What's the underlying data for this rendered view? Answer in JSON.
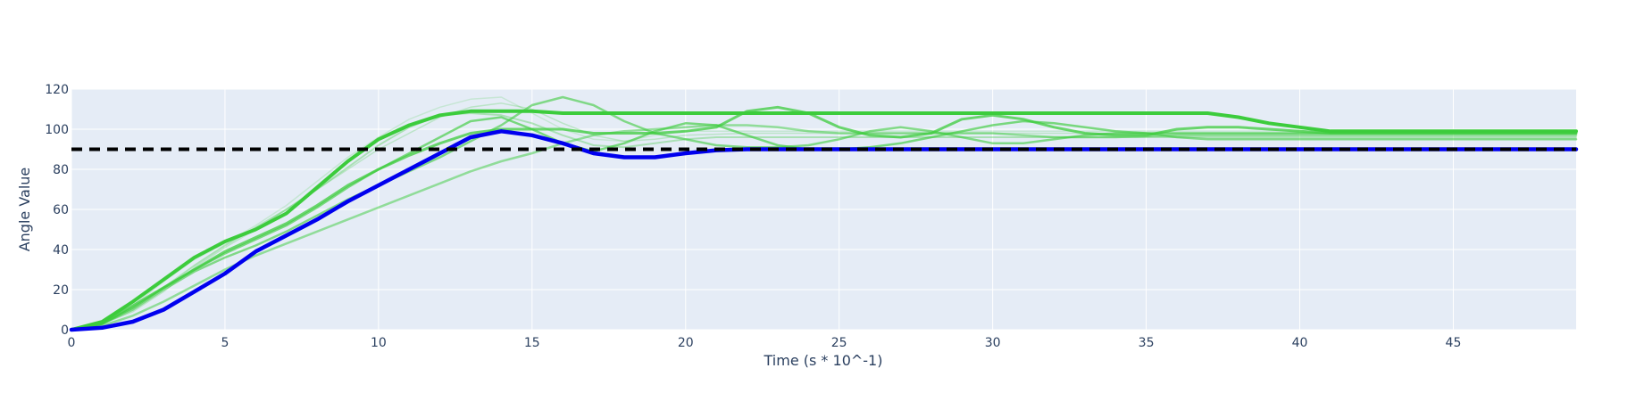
{
  "chart_data": {
    "type": "line",
    "title": "",
    "xlabel": "Time (s * 10^-1)",
    "ylabel": "Angle Value",
    "xlim": [
      0,
      49
    ],
    "ylim": [
      0,
      120
    ],
    "x_ticks": [
      0,
      5,
      10,
      15,
      20,
      25,
      30,
      35,
      40,
      45
    ],
    "y_ticks": [
      0,
      20,
      40,
      60,
      80,
      100,
      120
    ],
    "grid": true,
    "legend": "none",
    "colors": {
      "plot_bg": "#e5ecf6",
      "grid": "#ffffff",
      "text": "#2a3f5f",
      "green": "#3ccc3c",
      "blue": "#0000ee",
      "target": "#000000"
    },
    "target": {
      "y": 90,
      "style": "dashed"
    },
    "series": [
      {
        "role": "faint",
        "opacity": 0.18,
        "width": 1.5,
        "points": [
          [
            0,
            0
          ],
          [
            1,
            4
          ],
          [
            2,
            12
          ],
          [
            3,
            24
          ],
          [
            4,
            35
          ],
          [
            5,
            43
          ],
          [
            6,
            52
          ],
          [
            7,
            62
          ],
          [
            8,
            74
          ],
          [
            9,
            86
          ],
          [
            10,
            96
          ],
          [
            11,
            105
          ],
          [
            12,
            111
          ],
          [
            13,
            115
          ],
          [
            14,
            116
          ],
          [
            15,
            108
          ],
          [
            16,
            100
          ],
          [
            17,
            95
          ],
          [
            18,
            94
          ],
          [
            19,
            97
          ],
          [
            20,
            99
          ],
          [
            22,
            99
          ],
          [
            25,
            99
          ],
          [
            30,
            99
          ],
          [
            35,
            99
          ],
          [
            40,
            99
          ],
          [
            45,
            99
          ],
          [
            49,
            99
          ]
        ]
      },
      {
        "role": "faint",
        "opacity": 0.25,
        "width": 1.5,
        "points": [
          [
            0,
            0
          ],
          [
            1,
            3
          ],
          [
            2,
            9
          ],
          [
            3,
            19
          ],
          [
            4,
            31
          ],
          [
            5,
            41
          ],
          [
            6,
            50
          ],
          [
            7,
            60
          ],
          [
            8,
            70
          ],
          [
            9,
            80
          ],
          [
            10,
            90
          ],
          [
            11,
            98
          ],
          [
            12,
            106
          ],
          [
            13,
            111
          ],
          [
            14,
            113
          ],
          [
            15,
            110
          ],
          [
            16,
            103
          ],
          [
            17,
            97
          ],
          [
            18,
            94
          ],
          [
            19,
            95
          ],
          [
            20,
            97
          ],
          [
            22,
            98
          ],
          [
            25,
            98
          ],
          [
            30,
            98
          ],
          [
            35,
            98
          ],
          [
            40,
            98
          ],
          [
            45,
            98
          ],
          [
            49,
            98
          ]
        ]
      },
      {
        "role": "faint",
        "opacity": 0.35,
        "width": 2,
        "points": [
          [
            0,
            0
          ],
          [
            1,
            4
          ],
          [
            2,
            11
          ],
          [
            3,
            21
          ],
          [
            4,
            32
          ],
          [
            5,
            42
          ],
          [
            6,
            51
          ],
          [
            7,
            60
          ],
          [
            8,
            70
          ],
          [
            9,
            81
          ],
          [
            10,
            92
          ],
          [
            11,
            101
          ],
          [
            12,
            107
          ],
          [
            13,
            108
          ],
          [
            14,
            107
          ],
          [
            15,
            103
          ],
          [
            16,
            97
          ],
          [
            17,
            92
          ],
          [
            18,
            91
          ],
          [
            19,
            93
          ],
          [
            20,
            95
          ],
          [
            21,
            96
          ],
          [
            22,
            96
          ],
          [
            25,
            96
          ],
          [
            30,
            96
          ],
          [
            35,
            96
          ],
          [
            40,
            96
          ],
          [
            45,
            96
          ],
          [
            49,
            96
          ]
        ]
      },
      {
        "role": "mid",
        "opacity": 0.5,
        "width": 2.5,
        "points": [
          [
            0,
            0
          ],
          [
            1,
            2
          ],
          [
            2,
            7
          ],
          [
            3,
            14
          ],
          [
            4,
            22
          ],
          [
            5,
            30
          ],
          [
            6,
            37
          ],
          [
            7,
            43
          ],
          [
            8,
            49
          ],
          [
            9,
            55
          ],
          [
            10,
            61
          ],
          [
            11,
            67
          ],
          [
            12,
            73
          ],
          [
            13,
            79
          ],
          [
            14,
            84
          ],
          [
            15,
            88
          ],
          [
            16,
            93
          ],
          [
            17,
            97
          ],
          [
            18,
            99
          ],
          [
            19,
            100
          ],
          [
            20,
            101
          ],
          [
            21,
            102
          ],
          [
            22,
            102
          ],
          [
            23,
            101
          ],
          [
            24,
            99
          ],
          [
            25,
            98
          ],
          [
            26,
            98
          ],
          [
            27,
            98
          ],
          [
            28,
            98
          ],
          [
            29,
            98
          ],
          [
            30,
            98
          ],
          [
            31,
            97
          ],
          [
            32,
            96
          ],
          [
            34,
            96
          ],
          [
            36,
            97
          ],
          [
            37,
            97
          ],
          [
            38,
            97
          ],
          [
            40,
            97
          ],
          [
            45,
            97
          ],
          [
            49,
            97
          ]
        ]
      },
      {
        "role": "mid",
        "opacity": 0.6,
        "width": 2.5,
        "points": [
          [
            0,
            0
          ],
          [
            1,
            3
          ],
          [
            2,
            10
          ],
          [
            3,
            20
          ],
          [
            4,
            29
          ],
          [
            5,
            36
          ],
          [
            6,
            42
          ],
          [
            7,
            49
          ],
          [
            8,
            57
          ],
          [
            9,
            65
          ],
          [
            10,
            72
          ],
          [
            11,
            79
          ],
          [
            12,
            86
          ],
          [
            13,
            94
          ],
          [
            14,
            102
          ],
          [
            15,
            112
          ],
          [
            16,
            116
          ],
          [
            17,
            112
          ],
          [
            18,
            104
          ],
          [
            19,
            98
          ],
          [
            20,
            95
          ],
          [
            21,
            92
          ],
          [
            22,
            91
          ],
          [
            23,
            91
          ],
          [
            24,
            92
          ],
          [
            25,
            95
          ],
          [
            26,
            99
          ],
          [
            27,
            101
          ],
          [
            28,
            99
          ],
          [
            29,
            96
          ],
          [
            30,
            93
          ],
          [
            31,
            93
          ],
          [
            32,
            95
          ],
          [
            33,
            97
          ],
          [
            34,
            98
          ],
          [
            35,
            98
          ],
          [
            36,
            96
          ],
          [
            37,
            95
          ],
          [
            38,
            95
          ],
          [
            40,
            95
          ],
          [
            45,
            95
          ],
          [
            49,
            95
          ]
        ]
      },
      {
        "role": "mid",
        "opacity": 0.65,
        "width": 2.5,
        "points": [
          [
            0,
            0
          ],
          [
            1,
            3
          ],
          [
            2,
            11
          ],
          [
            3,
            21
          ],
          [
            4,
            30
          ],
          [
            5,
            38
          ],
          [
            6,
            45
          ],
          [
            7,
            52
          ],
          [
            8,
            61
          ],
          [
            9,
            71
          ],
          [
            10,
            80
          ],
          [
            11,
            88
          ],
          [
            12,
            96
          ],
          [
            13,
            104
          ],
          [
            14,
            106
          ],
          [
            15,
            100
          ],
          [
            16,
            93
          ],
          [
            17,
            89
          ],
          [
            18,
            93
          ],
          [
            19,
            99
          ],
          [
            20,
            103
          ],
          [
            21,
            102
          ],
          [
            22,
            97
          ],
          [
            23,
            92
          ],
          [
            24,
            90
          ],
          [
            25,
            90
          ],
          [
            26,
            91
          ],
          [
            27,
            93
          ],
          [
            28,
            96
          ],
          [
            29,
            99
          ],
          [
            30,
            102
          ],
          [
            31,
            104
          ],
          [
            32,
            103
          ],
          [
            33,
            101
          ],
          [
            34,
            99
          ],
          [
            35,
            98
          ],
          [
            36,
            98
          ],
          [
            37,
            98
          ],
          [
            38,
            98
          ],
          [
            40,
            98
          ],
          [
            45,
            98
          ],
          [
            49,
            98
          ]
        ]
      },
      {
        "role": "mid",
        "opacity": 0.75,
        "width": 3,
        "points": [
          [
            0,
            0
          ],
          [
            1,
            3
          ],
          [
            2,
            12
          ],
          [
            3,
            21
          ],
          [
            4,
            30
          ],
          [
            5,
            39
          ],
          [
            6,
            46
          ],
          [
            7,
            53
          ],
          [
            8,
            62
          ],
          [
            9,
            72
          ],
          [
            10,
            80
          ],
          [
            11,
            87
          ],
          [
            12,
            93
          ],
          [
            13,
            98
          ],
          [
            14,
            100
          ],
          [
            15,
            100
          ],
          [
            16,
            100
          ],
          [
            17,
            98
          ],
          [
            18,
            98
          ],
          [
            19,
            98
          ],
          [
            20,
            99
          ],
          [
            21,
            101
          ],
          [
            22,
            109
          ],
          [
            23,
            111
          ],
          [
            24,
            108
          ],
          [
            25,
            101
          ],
          [
            26,
            97
          ],
          [
            27,
            96
          ],
          [
            28,
            98
          ],
          [
            29,
            105
          ],
          [
            30,
            107
          ],
          [
            31,
            105
          ],
          [
            32,
            101
          ],
          [
            33,
            98
          ],
          [
            34,
            97
          ],
          [
            35,
            97
          ],
          [
            36,
            100
          ],
          [
            37,
            101
          ],
          [
            38,
            101
          ],
          [
            39,
            100
          ],
          [
            40,
            99
          ],
          [
            41,
            98
          ],
          [
            42,
            98
          ],
          [
            45,
            98
          ],
          [
            49,
            98
          ]
        ]
      },
      {
        "role": "bold",
        "opacity": 1,
        "width": 4,
        "points": [
          [
            0,
            0
          ],
          [
            1,
            4
          ],
          [
            2,
            14
          ],
          [
            3,
            25
          ],
          [
            4,
            36
          ],
          [
            5,
            44
          ],
          [
            6,
            50
          ],
          [
            7,
            58
          ],
          [
            8,
            71
          ],
          [
            9,
            84
          ],
          [
            10,
            95
          ],
          [
            11,
            102
          ],
          [
            12,
            107
          ],
          [
            13,
            109
          ],
          [
            14,
            109
          ],
          [
            15,
            109
          ],
          [
            16,
            108
          ],
          [
            17,
            108
          ],
          [
            18,
            108
          ],
          [
            20,
            108
          ],
          [
            25,
            108
          ],
          [
            30,
            108
          ],
          [
            35,
            108
          ],
          [
            36,
            108
          ],
          [
            37,
            108
          ],
          [
            38,
            106
          ],
          [
            39,
            103
          ],
          [
            40,
            101
          ],
          [
            41,
            99
          ],
          [
            42,
            99
          ],
          [
            45,
            99
          ],
          [
            49,
            99
          ]
        ]
      },
      {
        "role": "blue",
        "opacity": 1,
        "width": 4.5,
        "points": [
          [
            0,
            0
          ],
          [
            1,
            1
          ],
          [
            2,
            4
          ],
          [
            3,
            10
          ],
          [
            4,
            19
          ],
          [
            5,
            28
          ],
          [
            6,
            39
          ],
          [
            7,
            47
          ],
          [
            8,
            55
          ],
          [
            9,
            64
          ],
          [
            10,
            72
          ],
          [
            11,
            80
          ],
          [
            12,
            88
          ],
          [
            13,
            96
          ],
          [
            14,
            99
          ],
          [
            15,
            97
          ],
          [
            16,
            93
          ],
          [
            17,
            88
          ],
          [
            18,
            86
          ],
          [
            19,
            86
          ],
          [
            20,
            88
          ],
          [
            21,
            89.5
          ],
          [
            22,
            90
          ],
          [
            25,
            90
          ],
          [
            30,
            90
          ],
          [
            35,
            90
          ],
          [
            40,
            90
          ],
          [
            45,
            90
          ],
          [
            49,
            90
          ]
        ]
      }
    ]
  }
}
